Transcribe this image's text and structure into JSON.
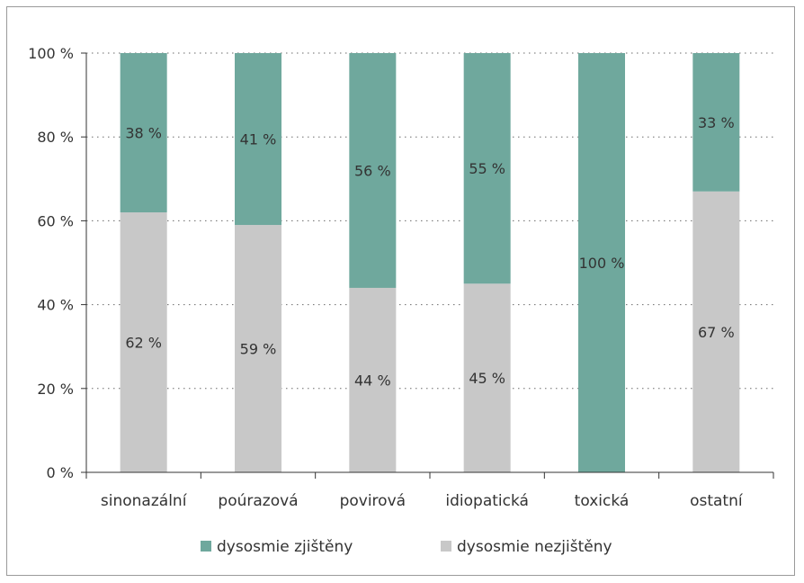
{
  "chart_data": {
    "type": "bar",
    "stacked": true,
    "percent": true,
    "categories": [
      "sinonazální",
      "poúrazová",
      "povirová",
      "idiopatická",
      "toxická",
      "ostatní"
    ],
    "series": [
      {
        "name": "dysosmie nezjištěny",
        "values": [
          62,
          59,
          44,
          45,
          0,
          67
        ],
        "color": "#c8c8c8"
      },
      {
        "name": "dysosmie zjištěny",
        "values": [
          38,
          41,
          56,
          55,
          100,
          33
        ],
        "color": "#6fa89d"
      }
    ],
    "data_labels": [
      [
        "62 %",
        "59 %",
        "44 %",
        "45 %",
        "",
        "67 %"
      ],
      [
        "38 %",
        "41 %",
        "56 %",
        "55 %",
        "100 %",
        "33 %"
      ]
    ],
    "y_ticks": [
      "0 %",
      "20 %",
      "40 %",
      "60 %",
      "80 %",
      "100 %"
    ],
    "ylim": [
      0,
      100
    ],
    "grid": "dotted horizontal",
    "legend": {
      "position": "bottom",
      "entries": [
        {
          "label": "dysosmie zjištěny",
          "color": "#6fa89d"
        },
        {
          "label": "dysosmie nezjištěny",
          "color": "#c8c8c8"
        }
      ]
    },
    "title": "",
    "xlabel": "",
    "ylabel": ""
  }
}
